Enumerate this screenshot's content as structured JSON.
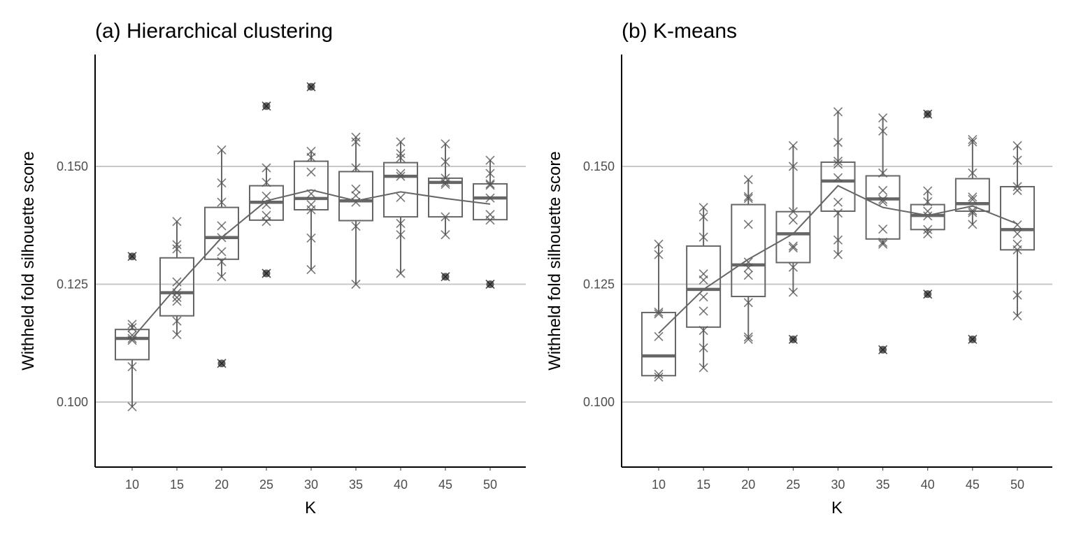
{
  "chart_data": [
    {
      "type": "box",
      "title": "(a) Hierarchical clustering",
      "xlabel": "K",
      "ylabel": "Withheld fold silhouette score",
      "ylim": [
        0.086,
        0.174
      ],
      "yticks": [
        0.1,
        0.125,
        0.15
      ],
      "ytick_labels": [
        "0.100",
        "0.125",
        "0.150"
      ],
      "categories": [
        "10",
        "15",
        "20",
        "25",
        "30",
        "35",
        "40",
        "45",
        "50"
      ],
      "grid": "horizontal-major",
      "boxes": [
        {
          "k": "10",
          "lower": 0.099,
          "q1": 0.109,
          "median": 0.1135,
          "q3": 0.1154,
          "upper": 0.1165,
          "outliers": [
            0.1309
          ]
        },
        {
          "k": "15",
          "lower": 0.1143,
          "q1": 0.1183,
          "median": 0.1232,
          "q3": 0.1306,
          "upper": 0.1383,
          "outliers": []
        },
        {
          "k": "20",
          "lower": 0.1266,
          "q1": 0.1303,
          "median": 0.1349,
          "q3": 0.1413,
          "upper": 0.1535,
          "outliers": [
            0.1082
          ]
        },
        {
          "k": "25",
          "lower": 0.1383,
          "q1": 0.1386,
          "median": 0.1424,
          "q3": 0.1459,
          "upper": 0.1497,
          "outliers": [
            0.1628,
            0.1273
          ]
        },
        {
          "k": "30",
          "lower": 0.1281,
          "q1": 0.1408,
          "median": 0.1432,
          "q3": 0.1511,
          "upper": 0.1532,
          "outliers": [
            0.1669
          ]
        },
        {
          "k": "35",
          "lower": 0.125,
          "q1": 0.1385,
          "median": 0.1427,
          "q3": 0.1489,
          "upper": 0.1562,
          "outliers": []
        },
        {
          "k": "40",
          "lower": 0.1273,
          "q1": 0.1393,
          "median": 0.1479,
          "q3": 0.1508,
          "upper": 0.1552,
          "outliers": []
        },
        {
          "k": "45",
          "lower": 0.1355,
          "q1": 0.1393,
          "median": 0.1466,
          "q3": 0.1475,
          "upper": 0.1548,
          "outliers": [
            0.1266
          ]
        },
        {
          "k": "50",
          "lower": 0.1386,
          "q1": 0.1387,
          "median": 0.1433,
          "q3": 0.1463,
          "upper": 0.1513,
          "outliers": [
            0.125
          ]
        }
      ],
      "points": [
        [
          0.1309,
          0.1165,
          0.1158,
          0.1142,
          0.1135,
          0.1131,
          0.1075,
          0.099
        ],
        [
          0.1383,
          0.1334,
          0.1325,
          0.1255,
          0.1232,
          0.1222,
          0.1214,
          0.1172,
          0.1143
        ],
        [
          0.1535,
          0.1465,
          0.1424,
          0.1374,
          0.1349,
          0.1319,
          0.1298,
          0.1266,
          0.1082
        ],
        [
          0.1628,
          0.1497,
          0.1466,
          0.1437,
          0.1419,
          0.1396,
          0.1383,
          0.1273
        ],
        [
          0.1669,
          0.1532,
          0.1519,
          0.1488,
          0.1442,
          0.1419,
          0.1408,
          0.1348,
          0.1281
        ],
        [
          0.1562,
          0.1552,
          0.1497,
          0.1452,
          0.1438,
          0.1424,
          0.1373,
          0.125
        ],
        [
          0.1552,
          0.1527,
          0.1518,
          0.1485,
          0.1479,
          0.1434,
          0.1379,
          0.1355,
          0.1273
        ],
        [
          0.1548,
          0.151,
          0.1475,
          0.1466,
          0.1462,
          0.1393,
          0.1355,
          0.1266
        ],
        [
          0.1513,
          0.1485,
          0.1463,
          0.146,
          0.1433,
          0.1398,
          0.1386,
          0.125
        ]
      ],
      "means": [
        0.1135,
        0.1245,
        0.1349,
        0.1427,
        0.145,
        0.1427,
        0.1446,
        0.1432,
        0.142
      ]
    },
    {
      "type": "box",
      "title": "(b) K-means",
      "xlabel": "K",
      "ylabel": "Withheld fold silhouette score",
      "ylim": [
        0.086,
        0.174
      ],
      "yticks": [
        0.1,
        0.125,
        0.15
      ],
      "ytick_labels": [
        "0.100",
        "0.125",
        "0.150"
      ],
      "categories": [
        "10",
        "15",
        "20",
        "25",
        "30",
        "35",
        "40",
        "45",
        "50"
      ],
      "grid": "horizontal-major",
      "boxes": [
        {
          "k": "10",
          "lower": 0.1056,
          "q1": 0.1056,
          "median": 0.1098,
          "q3": 0.119,
          "upper": 0.1335,
          "outliers": []
        },
        {
          "k": "15",
          "lower": 0.1073,
          "q1": 0.1159,
          "median": 0.1239,
          "q3": 0.1331,
          "upper": 0.1413,
          "outliers": []
        },
        {
          "k": "20",
          "lower": 0.1133,
          "q1": 0.1224,
          "median": 0.1291,
          "q3": 0.1419,
          "upper": 0.1472,
          "outliers": []
        },
        {
          "k": "25",
          "lower": 0.1233,
          "q1": 0.1296,
          "median": 0.1357,
          "q3": 0.1404,
          "upper": 0.1544,
          "outliers": [
            0.1133
          ]
        },
        {
          "k": "30",
          "lower": 0.1313,
          "q1": 0.1405,
          "median": 0.1469,
          "q3": 0.1509,
          "upper": 0.1616,
          "outliers": []
        },
        {
          "k": "35",
          "lower": 0.1335,
          "q1": 0.1346,
          "median": 0.1431,
          "q3": 0.148,
          "upper": 0.1603,
          "outliers": [
            0.1111
          ]
        },
        {
          "k": "40",
          "lower": 0.1357,
          "q1": 0.1366,
          "median": 0.1396,
          "q3": 0.1419,
          "upper": 0.1448,
          "outliers": [
            0.1611,
            0.1229
          ]
        },
        {
          "k": "45",
          "lower": 0.1377,
          "q1": 0.1405,
          "median": 0.1421,
          "q3": 0.1474,
          "upper": 0.1557,
          "outliers": [
            0.1133
          ]
        },
        {
          "k": "50",
          "lower": 0.1183,
          "q1": 0.1323,
          "median": 0.1366,
          "q3": 0.1457,
          "upper": 0.1544,
          "outliers": []
        }
      ],
      "points": [
        [
          0.1335,
          0.1313,
          0.1191,
          0.1187,
          0.1139,
          0.1059,
          0.1053
        ],
        [
          0.1413,
          0.1393,
          0.135,
          0.1272,
          0.1259,
          0.1223,
          0.1193,
          0.1152,
          0.1115,
          0.1073
        ],
        [
          0.1472,
          0.1436,
          0.1432,
          0.1377,
          0.1297,
          0.1285,
          0.1269,
          0.1211,
          0.1138,
          0.1133
        ],
        [
          0.1544,
          0.15,
          0.1404,
          0.1386,
          0.1331,
          0.1327,
          0.1286,
          0.1233,
          0.1133
        ],
        [
          0.1616,
          0.1551,
          0.1511,
          0.1505,
          0.1476,
          0.1424,
          0.1401,
          0.1344,
          0.1313
        ],
        [
          0.1603,
          0.1575,
          0.1486,
          0.1449,
          0.143,
          0.1425,
          0.1367,
          0.1339,
          0.1335,
          0.1111
        ],
        [
          0.1611,
          0.1448,
          0.1425,
          0.1405,
          0.1395,
          0.1366,
          0.1357,
          0.1229
        ],
        [
          0.1557,
          0.1552,
          0.1486,
          0.1435,
          0.143,
          0.1406,
          0.1402,
          0.1377,
          0.1133
        ],
        [
          0.1544,
          0.1513,
          0.1457,
          0.1449,
          0.1376,
          0.1357,
          0.1335,
          0.1323,
          0.1227,
          0.1183
        ]
      ],
      "means": [
        0.1146,
        0.1239,
        0.1303,
        0.1357,
        0.1459,
        0.1413,
        0.1396,
        0.1416,
        0.1378
      ]
    }
  ]
}
